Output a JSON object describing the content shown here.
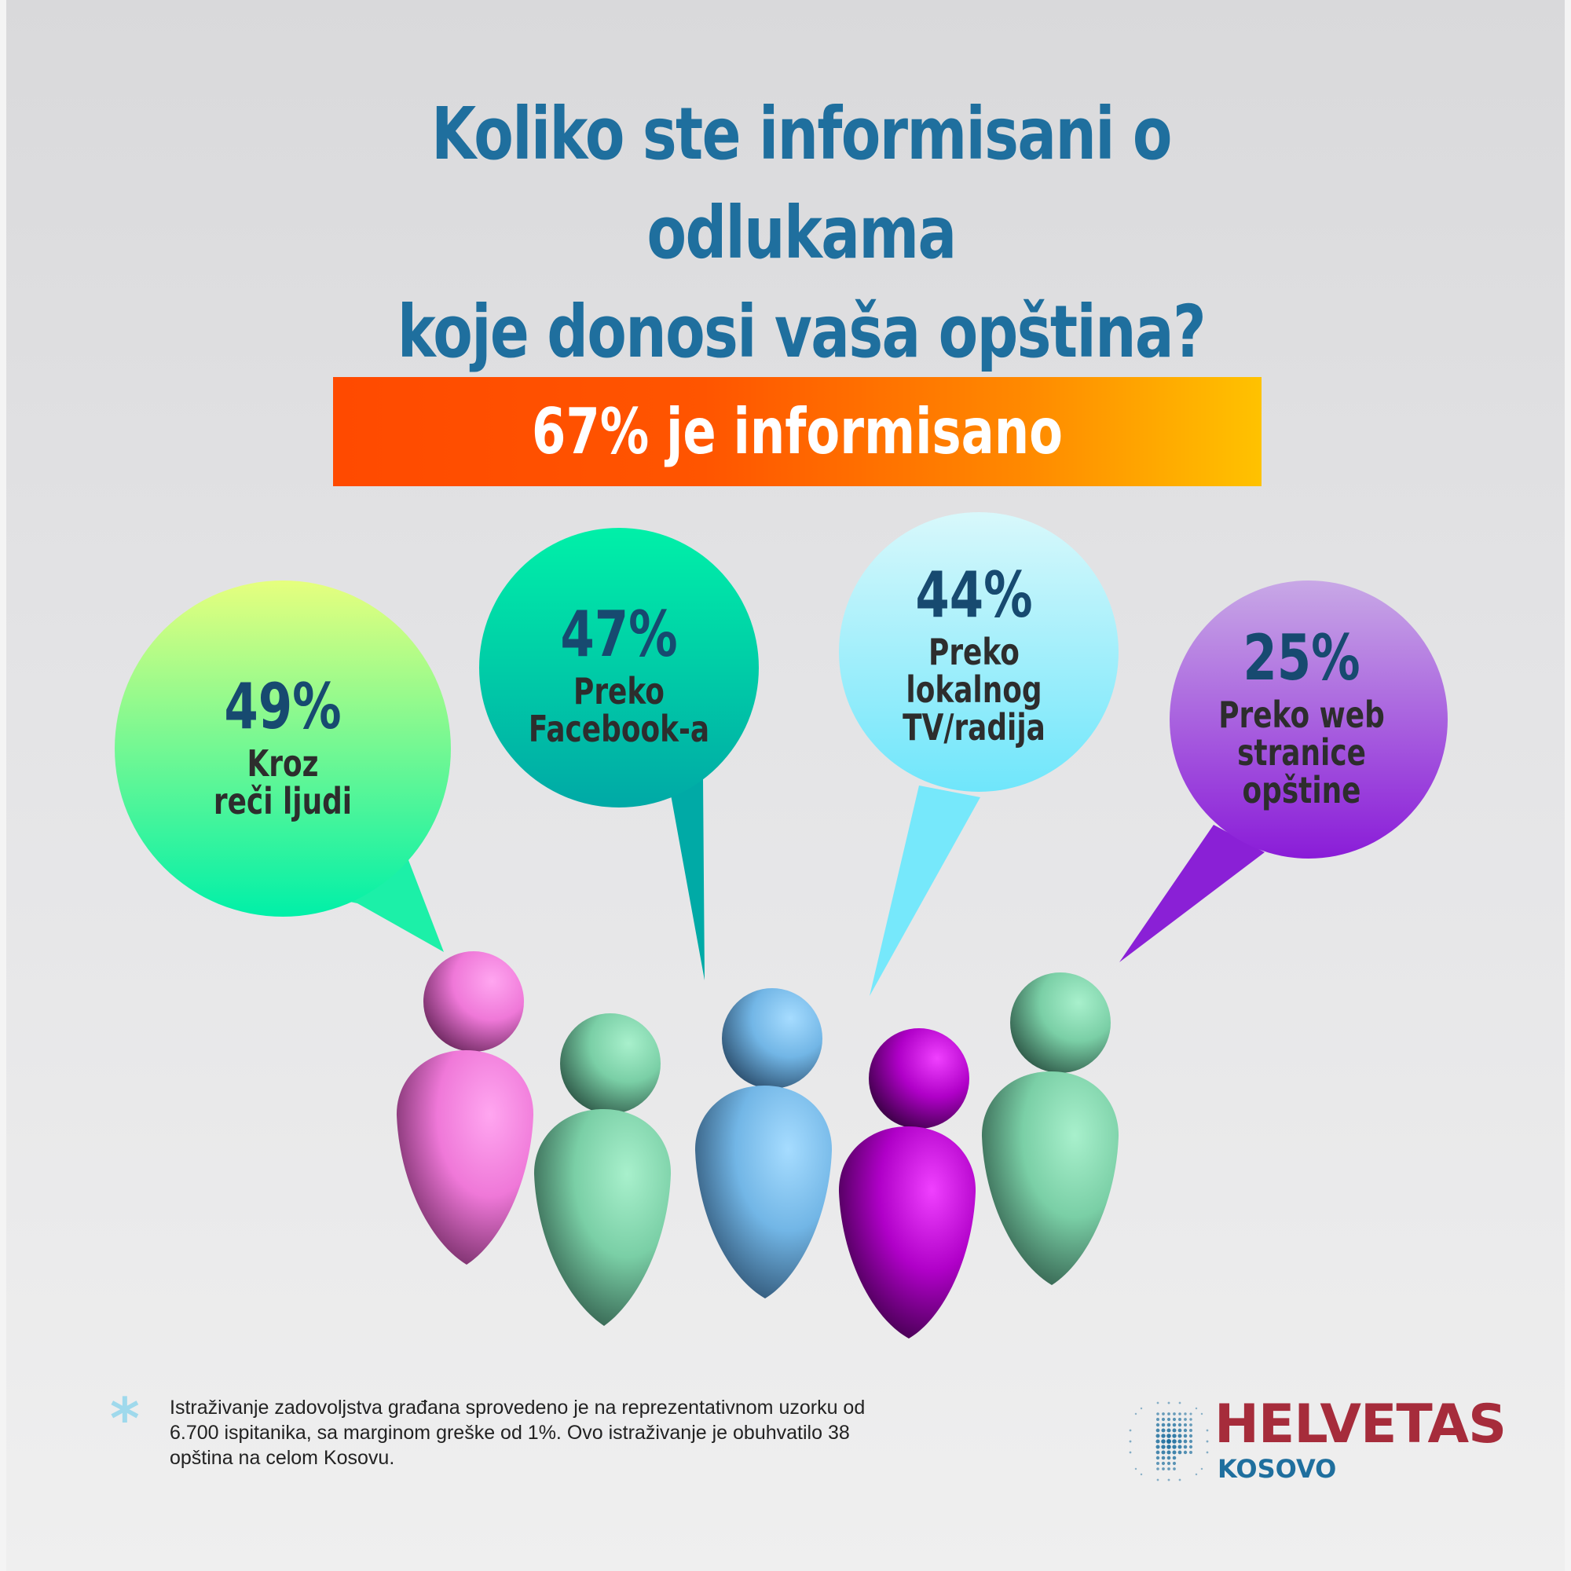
{
  "title": {
    "line1": "Koliko ste informisani o odlukama",
    "line2": "koje donosi vaša opština?"
  },
  "banner": {
    "text": "67% je informisano"
  },
  "sources": [
    {
      "percent": "49%",
      "value": 49,
      "line1": "Kroz",
      "line2": "reči ljudi",
      "line3": ""
    },
    {
      "percent": "47%",
      "value": 47,
      "line1": "Preko",
      "line2": "Facebook-a",
      "line3": ""
    },
    {
      "percent": "44%",
      "value": 44,
      "line1": "Preko",
      "line2": "lokalnog",
      "line3": "TV/radija"
    },
    {
      "percent": "25%",
      "value": 25,
      "line1": "Preko web",
      "line2": "stranice",
      "line3": "opštine"
    }
  ],
  "people_figures": [
    {
      "color": "#ff8fe6",
      "icon": "person-figure-icon"
    },
    {
      "color": "#8fe0b8",
      "icon": "person-figure-icon"
    },
    {
      "color": "#86c8f6",
      "icon": "person-figure-icon"
    },
    {
      "color": "#d010e0",
      "icon": "person-figure-icon"
    },
    {
      "color": "#8fe0b8",
      "icon": "person-figure-icon"
    }
  ],
  "footnote": {
    "symbol": "*",
    "text": "Istraživanje zadovoljstva građana sprovedeno je na reprezentativnom uzorku od 6.700 ispitanika, sa marginom greške od 1%. Ovo istraživanje je obuhvatilo 38 opština na celom Kosovu."
  },
  "logo": {
    "name": "HELVETAS",
    "subtitle": "KOSOVO",
    "icon": "globe-icon",
    "name_color": "#a62c3b",
    "subtitle_color": "#1f6f9e"
  }
}
